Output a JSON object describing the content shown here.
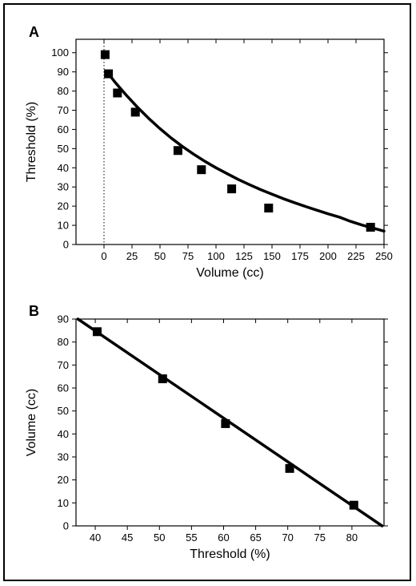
{
  "figure": {
    "panel_a_letter": "A",
    "panel_b_letter": "B"
  },
  "chart_data": [
    {
      "type": "scatter",
      "panel": "A",
      "title": "",
      "xlabel": "Volume (cc)",
      "ylabel": "Threshold (%)",
      "xlim": [
        -25,
        250
      ],
      "ylim": [
        0,
        107
      ],
      "xticks": [
        0,
        25,
        50,
        75,
        100,
        125,
        150,
        175,
        200,
        225,
        250
      ],
      "yticks": [
        0,
        10,
        20,
        30,
        40,
        50,
        60,
        70,
        80,
        90,
        100
      ],
      "grid": false,
      "reference_line": {
        "axis": "x",
        "value": 0,
        "style": "dotted"
      },
      "points": [
        {
          "x": 1,
          "y": 99
        },
        {
          "x": 4,
          "y": 89
        },
        {
          "x": 12,
          "y": 79
        },
        {
          "x": 28,
          "y": 69
        },
        {
          "x": 66,
          "y": 49
        },
        {
          "x": 87,
          "y": 39
        },
        {
          "x": 114,
          "y": 29
        },
        {
          "x": 147,
          "y": 19
        },
        {
          "x": 238,
          "y": 9
        }
      ],
      "fit_curve": {
        "x": [
          4,
          10,
          20,
          30,
          40,
          50,
          60,
          70,
          80,
          90,
          100,
          110,
          120,
          130,
          140,
          150,
          160,
          170,
          180,
          190,
          200,
          210,
          220,
          230,
          240,
          250
        ],
        "y": [
          89,
          84.5,
          77.8,
          71.5,
          65.7,
          60.4,
          55.5,
          51.1,
          47.1,
          43.4,
          40.0,
          36.9,
          33.9,
          31.2,
          28.6,
          26.2,
          23.9,
          21.8,
          19.8,
          17.9,
          16.0,
          14.3,
          12.1,
          10.2,
          8.6,
          7.0
        ]
      }
    },
    {
      "type": "scatter",
      "panel": "B",
      "title": "",
      "xlabel": "Threshold (%)",
      "ylabel": "Volume (cc)",
      "xlim": [
        37,
        85
      ],
      "ylim": [
        0,
        90
      ],
      "xticks": [
        40,
        45,
        50,
        55,
        60,
        65,
        70,
        75,
        80
      ],
      "yticks": [
        0,
        10,
        20,
        30,
        40,
        50,
        60,
        70,
        80,
        90
      ],
      "grid": false,
      "points": [
        {
          "x": 40.3,
          "y": 84.5
        },
        {
          "x": 50.5,
          "y": 64
        },
        {
          "x": 60.3,
          "y": 44.5
        },
        {
          "x": 70.3,
          "y": 25
        },
        {
          "x": 80.3,
          "y": 9
        }
      ],
      "fit_line": {
        "x": [
          37.3,
          84.7
        ],
        "y": [
          90,
          0
        ]
      }
    }
  ]
}
